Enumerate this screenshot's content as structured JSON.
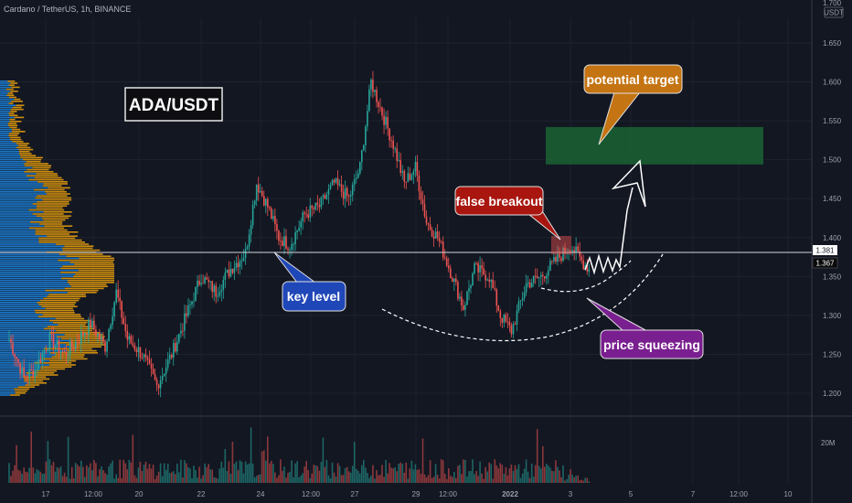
{
  "chart_data": {
    "type": "candlestick",
    "title": "Cardano / TetherUS, 1h, BINANCE",
    "symbol_label": "ADA/USDT",
    "currency_badge": "USDT",
    "ylim": [
      1.17,
      1.72
    ],
    "y_ticks": [
      "1.200",
      "1.250",
      "1.300",
      "1.350",
      "1.400",
      "1.450",
      "1.500",
      "1.550",
      "1.600",
      "1.650"
    ],
    "y_top_partial_tick": "1.700",
    "x_ticks": [
      "17",
      "12:00",
      "20",
      "22",
      "24",
      "12:00",
      "27",
      "29",
      "12:00",
      "2022",
      "3",
      "5",
      "7",
      "12:00",
      "10"
    ],
    "x_tick_bold_index": 9,
    "volume_axis_label": "20M",
    "price_labels": [
      {
        "text": "1.381",
        "value": 1.381,
        "style": "light"
      },
      {
        "text": "1.367",
        "value": 1.367,
        "style": "dark"
      }
    ],
    "key_level": 1.381,
    "target_zone": {
      "low": 1.494,
      "high": 1.542
    },
    "price_path": [
      {
        "i": 0,
        "p": 1.27
      },
      {
        "i": 8,
        "p": 1.22
      },
      {
        "i": 14,
        "p": 1.23
      },
      {
        "i": 22,
        "p": 1.27
      },
      {
        "i": 30,
        "p": 1.25
      },
      {
        "i": 38,
        "p": 1.27
      },
      {
        "i": 44,
        "p": 1.29
      },
      {
        "i": 52,
        "p": 1.26
      },
      {
        "i": 58,
        "p": 1.33
      },
      {
        "i": 64,
        "p": 1.27
      },
      {
        "i": 72,
        "p": 1.25
      },
      {
        "i": 80,
        "p": 1.21
      },
      {
        "i": 88,
        "p": 1.25
      },
      {
        "i": 96,
        "p": 1.3
      },
      {
        "i": 104,
        "p": 1.35
      },
      {
        "i": 112,
        "p": 1.33
      },
      {
        "i": 120,
        "p": 1.36
      },
      {
        "i": 128,
        "p": 1.38
      },
      {
        "i": 134,
        "p": 1.47
      },
      {
        "i": 140,
        "p": 1.44
      },
      {
        "i": 146,
        "p": 1.4
      },
      {
        "i": 152,
        "p": 1.39
      },
      {
        "i": 160,
        "p": 1.43
      },
      {
        "i": 168,
        "p": 1.44
      },
      {
        "i": 176,
        "p": 1.47
      },
      {
        "i": 184,
        "p": 1.45
      },
      {
        "i": 190,
        "p": 1.49
      },
      {
        "i": 196,
        "p": 1.6
      },
      {
        "i": 202,
        "p": 1.56
      },
      {
        "i": 208,
        "p": 1.52
      },
      {
        "i": 214,
        "p": 1.47
      },
      {
        "i": 220,
        "p": 1.49
      },
      {
        "i": 226,
        "p": 1.42
      },
      {
        "i": 232,
        "p": 1.4
      },
      {
        "i": 240,
        "p": 1.35
      },
      {
        "i": 246,
        "p": 1.31
      },
      {
        "i": 252,
        "p": 1.36
      },
      {
        "i": 260,
        "p": 1.35
      },
      {
        "i": 266,
        "p": 1.3
      },
      {
        "i": 272,
        "p": 1.28
      },
      {
        "i": 280,
        "p": 1.34
      },
      {
        "i": 288,
        "p": 1.35
      },
      {
        "i": 296,
        "p": 1.37
      },
      {
        "i": 304,
        "p": 1.39
      },
      {
        "i": 310,
        "p": 1.37
      },
      {
        "i": 314,
        "p": 1.36
      }
    ],
    "series_count": 315,
    "annotations": [
      {
        "text": "potential target",
        "kind": "callout",
        "color": "#c47412"
      },
      {
        "text": "false breakout",
        "kind": "callout",
        "color": "#a8160f"
      },
      {
        "text": "key level",
        "kind": "callout",
        "color": "#2047b8"
      },
      {
        "text": "price squeezing",
        "kind": "callout",
        "color": "#7a1f8f"
      }
    ],
    "colors": {
      "background": "#131722",
      "up": "#26a69a",
      "down": "#ef5350",
      "profile_blue": "#1e88e5",
      "profile_orange": "#f0a30a",
      "target_zone": "#1b5e33",
      "grid": "#1e222d"
    },
    "grid": true
  }
}
